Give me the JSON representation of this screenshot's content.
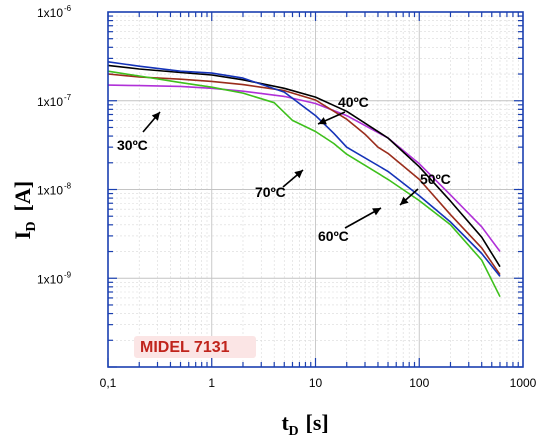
{
  "chart_data": {
    "type": "line",
    "xscale": "log",
    "yscale": "log",
    "xlim": [
      0.1,
      1000
    ],
    "ylim": [
      1e-10,
      1e-06
    ],
    "grid": true,
    "xlabel": {
      "main": "t",
      "sub": "D",
      "unit": "[s]"
    },
    "ylabel": {
      "main": "I",
      "sub": "D",
      "unit": "[A]"
    },
    "x_tick_labels": [
      {
        "value": 0.1,
        "text": "0,1"
      },
      {
        "value": 1,
        "text": "1"
      },
      {
        "value": 10,
        "text": "10"
      },
      {
        "value": 100,
        "text": "100"
      },
      {
        "value": 1000,
        "text": "1000"
      }
    ],
    "y_tick_labels": [
      {
        "value": 1e-09,
        "base": "1x10",
        "exp": "-9"
      },
      {
        "value": 1e-08,
        "base": "1x10",
        "exp": "-8"
      },
      {
        "value": 1e-07,
        "base": "1x10",
        "exp": "-7"
      },
      {
        "value": 1e-06,
        "base": "1x10",
        "exp": "-6"
      }
    ],
    "sample_label": "MIDEL 7131",
    "series": [
      {
        "name": "30ºC",
        "color": "#b030d8",
        "points": [
          [
            0.1,
            1.5e-07
          ],
          [
            0.2,
            1.48e-07
          ],
          [
            0.5,
            1.45e-07
          ],
          [
            1,
            1.38e-07
          ],
          [
            2,
            1.28e-07
          ],
          [
            5,
            1.12e-07
          ],
          [
            10,
            9.3e-08
          ],
          [
            20,
            6.8e-08
          ],
          [
            50,
            3.8e-08
          ],
          [
            100,
            1.95e-08
          ],
          [
            200,
            8.7e-09
          ],
          [
            400,
            3.8e-09
          ],
          [
            600,
            2e-09
          ]
        ]
      },
      {
        "name": "40ºC",
        "color": "#000000",
        "points": [
          [
            0.1,
            2.5e-07
          ],
          [
            0.2,
            2.28e-07
          ],
          [
            0.5,
            2.08e-07
          ],
          [
            1,
            1.95e-07
          ],
          [
            2,
            1.72e-07
          ],
          [
            5,
            1.38e-07
          ],
          [
            10,
            1.1e-07
          ],
          [
            20,
            7.6e-08
          ],
          [
            50,
            3.8e-08
          ],
          [
            100,
            1.8e-08
          ],
          [
            200,
            7.4e-09
          ],
          [
            400,
            2.9e-09
          ],
          [
            600,
            1.35e-09
          ]
        ]
      },
      {
        "name": "50ºC",
        "color": "#9a2d1c",
        "points": [
          [
            0.1,
            2e-07
          ],
          [
            0.2,
            1.85e-07
          ],
          [
            0.5,
            1.75e-07
          ],
          [
            1,
            1.65e-07
          ],
          [
            2,
            1.52e-07
          ],
          [
            5,
            1.3e-07
          ],
          [
            10,
            1.02e-07
          ],
          [
            20,
            6.2e-08
          ],
          [
            30,
            4.2e-08
          ],
          [
            40,
            3e-08
          ],
          [
            50,
            2.55e-08
          ],
          [
            100,
            1.3e-08
          ],
          [
            200,
            5.2e-09
          ],
          [
            400,
            2.2e-09
          ],
          [
            600,
            1.1e-09
          ]
        ]
      },
      {
        "name": "60ºC",
        "color": "#1533b8",
        "points": [
          [
            0.1,
            2.75e-07
          ],
          [
            0.2,
            2.45e-07
          ],
          [
            0.5,
            2.15e-07
          ],
          [
            1,
            2.05e-07
          ],
          [
            2,
            1.8e-07
          ],
          [
            5,
            1.25e-07
          ],
          [
            10,
            6.8e-08
          ],
          [
            15,
            4.3e-08
          ],
          [
            20,
            3e-08
          ],
          [
            50,
            1.6e-08
          ],
          [
            100,
            8.5e-09
          ],
          [
            200,
            4.3e-09
          ],
          [
            400,
            1.9e-09
          ],
          [
            600,
            1.05e-09
          ]
        ]
      },
      {
        "name": "70ºC",
        "color": "#3ec01c",
        "points": [
          [
            0.1,
            2.15e-07
          ],
          [
            0.2,
            1.9e-07
          ],
          [
            0.5,
            1.6e-07
          ],
          [
            1,
            1.42e-07
          ],
          [
            2,
            1.22e-07
          ],
          [
            4,
            9.5e-08
          ],
          [
            6,
            6e-08
          ],
          [
            10,
            4.5e-08
          ],
          [
            15,
            3.3e-08
          ],
          [
            20,
            2.5e-08
          ],
          [
            50,
            1.3e-08
          ],
          [
            100,
            7.5e-09
          ],
          [
            200,
            4e-09
          ],
          [
            400,
            1.6e-09
          ],
          [
            600,
            6.2e-10
          ]
        ]
      }
    ],
    "annotations": [
      {
        "text": "30ºC",
        "target": [
          0.33,
          1.5e-07
        ]
      },
      {
        "text": "40ºC",
        "target": [
          20,
          1.15e-07
        ]
      },
      {
        "text": "50ºC",
        "target": [
          70,
          2.45e-08
        ]
      },
      {
        "text": "60ºC",
        "target": [
          40,
          1.7e-08
        ]
      },
      {
        "text": "70ºC",
        "target": [
          12,
          3.2e-08
        ]
      }
    ]
  }
}
